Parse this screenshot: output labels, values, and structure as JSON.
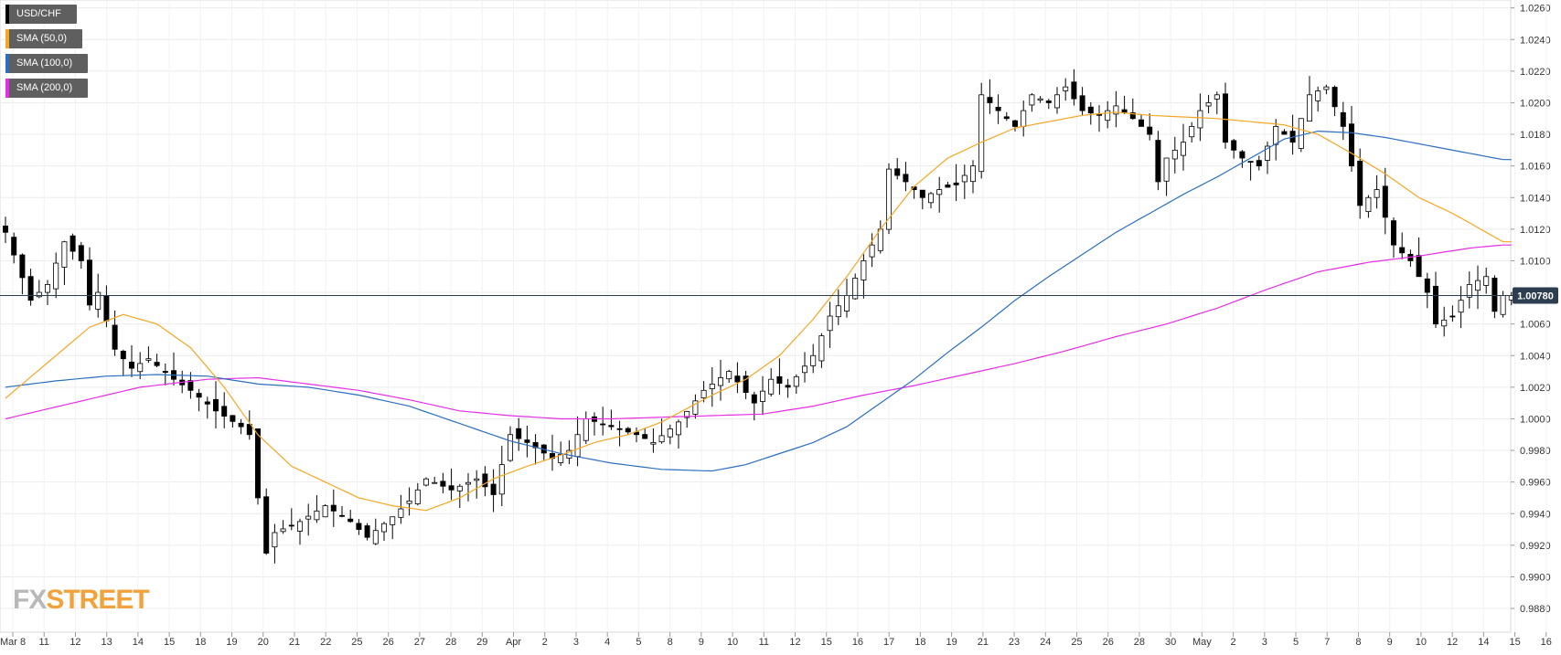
{
  "chart_data": {
    "type": "candlestick",
    "symbol": "USD/CHF",
    "legend": [
      {
        "label": "USD/CHF",
        "color": "#000000"
      },
      {
        "label": "SMA (50,0)",
        "color": "#f5a623"
      },
      {
        "label": "SMA (100,0)",
        "color": "#2c6fbf"
      },
      {
        "label": "SMA (200,0)",
        "color": "#e62ee6"
      }
    ],
    "current_price": 1.0078,
    "current_price_label": "1.00780",
    "ylim": [
      0.9865,
      1.0265
    ],
    "y_ticks": [
      "1.0260",
      "1.0240",
      "1.0220",
      "1.0200",
      "1.0180",
      "1.0160",
      "1.0140",
      "1.0120",
      "1.0100",
      "1.0080",
      "1.0060",
      "1.0040",
      "1.0020",
      "1.0000",
      "0.9980",
      "0.9960",
      "0.9940",
      "0.9920",
      "0.9900",
      "0.9880"
    ],
    "x_labels": [
      "Mar 8",
      "11",
      "12",
      "13",
      "14",
      "15",
      "18",
      "19",
      "20",
      "21",
      "22",
      "25",
      "26",
      "27",
      "28",
      "29",
      "Apr",
      "2",
      "3",
      "4",
      "5",
      "8",
      "9",
      "10",
      "11",
      "12",
      "15",
      "16",
      "17",
      "18",
      "19",
      "21",
      "23",
      "24",
      "25",
      "26",
      "28",
      "30",
      "May",
      "2",
      "3",
      "5",
      "7",
      "8",
      "9",
      "10",
      "12",
      "14",
      "15",
      "16"
    ],
    "price_path": [
      [
        0,
        1.0118
      ],
      [
        3,
        1.0075
      ],
      [
        5,
        1.0085
      ],
      [
        7,
        1.0112
      ],
      [
        9,
        1.01
      ],
      [
        10,
        1.0072
      ],
      [
        11,
        1.008
      ],
      [
        13,
        1.0044
      ],
      [
        15,
        1.0032
      ],
      [
        17,
        1.0038
      ],
      [
        20,
        1.0025
      ],
      [
        22,
        1.0018
      ],
      [
        25,
        1.0005
      ],
      [
        28,
        0.9995
      ],
      [
        29,
        0.999
      ],
      [
        30,
        0.995
      ],
      [
        31,
        0.9915
      ],
      [
        32,
        0.9928
      ],
      [
        35,
        0.9935
      ],
      [
        38,
        0.9945
      ],
      [
        41,
        0.9935
      ],
      [
        43,
        0.9925
      ],
      [
        46,
        0.9938
      ],
      [
        48,
        0.9948
      ],
      [
        50,
        0.9962
      ],
      [
        53,
        0.9955
      ],
      [
        56,
        0.9962
      ],
      [
        58,
        0.9952
      ],
      [
        60,
        0.999
      ],
      [
        62,
        0.9985
      ],
      [
        65,
        0.9975
      ],
      [
        67,
        0.998
      ],
      [
        69,
        1.0
      ],
      [
        72,
        0.9995
      ],
      [
        75,
        0.999
      ],
      [
        77,
        0.9985
      ],
      [
        80,
        0.9998
      ],
      [
        83,
        1.0018
      ],
      [
        86,
        1.003
      ],
      [
        89,
        1.001
      ],
      [
        91,
        1.0025
      ],
      [
        93,
        1.002
      ],
      [
        96,
        1.004
      ],
      [
        98,
        1.0065
      ],
      [
        100,
        1.0078
      ],
      [
        102,
        1.01
      ],
      [
        104,
        1.012
      ],
      [
        105,
        1.0158
      ],
      [
        107,
        1.015
      ],
      [
        109,
        1.014
      ],
      [
        111,
        1.0145
      ],
      [
        113,
        1.0148
      ],
      [
        115,
        1.016
      ],
      [
        116,
        1.0205
      ],
      [
        118,
        1.0195
      ],
      [
        120,
        1.0185
      ],
      [
        122,
        1.0205
      ],
      [
        124,
        1.02
      ],
      [
        126,
        1.021
      ],
      [
        128,
        1.0195
      ],
      [
        130,
        1.0192
      ],
      [
        132,
        1.0198
      ],
      [
        134,
        1.019
      ],
      [
        136,
        1.018
      ],
      [
        137,
        1.015
      ],
      [
        138,
        1.0165
      ],
      [
        140,
        1.0175
      ],
      [
        142,
        1.0195
      ],
      [
        144,
        1.0205
      ],
      [
        145,
        1.0175
      ],
      [
        147,
        1.0165
      ],
      [
        149,
        1.016
      ],
      [
        151,
        1.0185
      ],
      [
        153,
        1.0175
      ],
      [
        155,
        1.0205
      ],
      [
        157,
        1.021
      ],
      [
        159,
        1.0185
      ],
      [
        160,
        1.016
      ],
      [
        161,
        1.0135
      ],
      [
        163,
        1.0145
      ],
      [
        165,
        1.011
      ],
      [
        167,
        1.01
      ],
      [
        169,
        1.008
      ],
      [
        170,
        1.006
      ],
      [
        172,
        1.0065
      ],
      [
        174,
        1.0085
      ],
      [
        176,
        1.009
      ],
      [
        177,
        1.0068
      ],
      [
        178,
        1.0078
      ]
    ],
    "sma50_path": [
      [
        0,
        1.0013
      ],
      [
        6,
        1.004
      ],
      [
        10,
        1.0058
      ],
      [
        14,
        1.0066
      ],
      [
        18,
        1.006
      ],
      [
        22,
        1.0045
      ],
      [
        26,
        1.002
      ],
      [
        30,
        0.999
      ],
      [
        34,
        0.997
      ],
      [
        38,
        0.996
      ],
      [
        42,
        0.995
      ],
      [
        46,
        0.9945
      ],
      [
        50,
        0.9942
      ],
      [
        54,
        0.995
      ],
      [
        58,
        0.9962
      ],
      [
        62,
        0.997
      ],
      [
        66,
        0.9977
      ],
      [
        70,
        0.9985
      ],
      [
        74,
        0.999
      ],
      [
        78,
        0.9998
      ],
      [
        84,
        1.0015
      ],
      [
        88,
        1.0025
      ],
      [
        92,
        1.004
      ],
      [
        96,
        1.0063
      ],
      [
        100,
        1.009
      ],
      [
        104,
        1.012
      ],
      [
        108,
        1.0147
      ],
      [
        112,
        1.0165
      ],
      [
        116,
        1.0175
      ],
      [
        120,
        1.0184
      ],
      [
        124,
        1.0188
      ],
      [
        128,
        1.0192
      ],
      [
        132,
        1.0194
      ],
      [
        136,
        1.0192
      ],
      [
        140,
        1.0191
      ],
      [
        144,
        1.019
      ],
      [
        148,
        1.0188
      ],
      [
        152,
        1.0186
      ],
      [
        156,
        1.018
      ],
      [
        160,
        1.0168
      ],
      [
        164,
        1.0155
      ],
      [
        168,
        1.014
      ],
      [
        172,
        1.013
      ],
      [
        176,
        1.0118
      ],
      [
        178,
        1.0112
      ]
    ],
    "sma100_path": [
      [
        0,
        1.002
      ],
      [
        6,
        1.0024
      ],
      [
        12,
        1.0027
      ],
      [
        18,
        1.0028
      ],
      [
        24,
        1.0027
      ],
      [
        30,
        1.0022
      ],
      [
        36,
        1.002
      ],
      [
        42,
        1.0015
      ],
      [
        48,
        1.0008
      ],
      [
        54,
        0.9997
      ],
      [
        60,
        0.9986
      ],
      [
        66,
        0.9978
      ],
      [
        72,
        0.9972
      ],
      [
        78,
        0.9968
      ],
      [
        84,
        0.9967
      ],
      [
        88,
        0.9971
      ],
      [
        92,
        0.9978
      ],
      [
        96,
        0.9985
      ],
      [
        100,
        0.9995
      ],
      [
        104,
        1.001
      ],
      [
        108,
        1.0025
      ],
      [
        112,
        1.0042
      ],
      [
        116,
        1.0058
      ],
      [
        120,
        1.0075
      ],
      [
        124,
        1.009
      ],
      [
        128,
        1.0104
      ],
      [
        132,
        1.0118
      ],
      [
        136,
        1.013
      ],
      [
        140,
        1.0142
      ],
      [
        144,
        1.0153
      ],
      [
        148,
        1.0165
      ],
      [
        152,
        1.0177
      ],
      [
        156,
        1.0182
      ],
      [
        160,
        1.0181
      ],
      [
        164,
        1.0178
      ],
      [
        168,
        1.0174
      ],
      [
        172,
        1.017
      ],
      [
        176,
        1.0166
      ],
      [
        178,
        1.0164
      ]
    ],
    "sma200_path": [
      [
        0,
        1.0
      ],
      [
        8,
        1.001
      ],
      [
        16,
        1.002
      ],
      [
        24,
        1.0025
      ],
      [
        30,
        1.0026
      ],
      [
        36,
        1.0022
      ],
      [
        42,
        1.0018
      ],
      [
        48,
        1.0012
      ],
      [
        54,
        1.0005
      ],
      [
        60,
        1.0002
      ],
      [
        66,
        1.0
      ],
      [
        72,
        1.0
      ],
      [
        78,
        1.0001
      ],
      [
        84,
        1.0002
      ],
      [
        90,
        1.0003
      ],
      [
        96,
        1.0008
      ],
      [
        102,
        1.0015
      ],
      [
        108,
        1.0021
      ],
      [
        114,
        1.0028
      ],
      [
        120,
        1.0035
      ],
      [
        126,
        1.0043
      ],
      [
        132,
        1.0052
      ],
      [
        138,
        1.006
      ],
      [
        144,
        1.007
      ],
      [
        150,
        1.0082
      ],
      [
        156,
        1.0093
      ],
      [
        162,
        1.0099
      ],
      [
        168,
        1.0103
      ],
      [
        174,
        1.0108
      ],
      [
        178,
        1.011
      ]
    ],
    "grid": true,
    "legend_position": "top-left",
    "watermark": {
      "part1": "FX",
      "part2": "STREET"
    }
  }
}
